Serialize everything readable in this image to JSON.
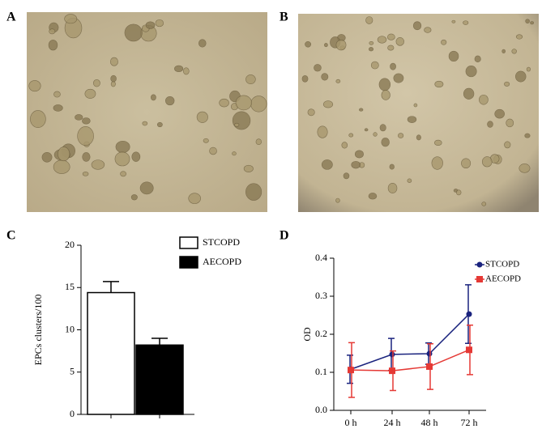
{
  "panel_labels": [
    "A",
    "B",
    "C",
    "D"
  ],
  "chart_data": [
    {
      "type": "bar",
      "ylabel": "EPCs clusters/100",
      "categories": [
        null,
        null
      ],
      "series": [
        {
          "name": "STCOPD",
          "color": "#ffffff",
          "values": [
            14.4,
            null
          ],
          "errors": [
            1.3,
            null
          ]
        },
        {
          "name": "AECOPD",
          "color": "#000000",
          "values": [
            null,
            8.2
          ],
          "errors": [
            null,
            0.8
          ]
        }
      ],
      "ylim": [
        0,
        20
      ],
      "yticks": [
        0,
        5,
        10,
        15,
        20
      ],
      "legend": "top-right"
    },
    {
      "type": "line",
      "ylabel": "OD",
      "categories": [
        "0 h",
        "24 h",
        "48 h",
        "72 h"
      ],
      "series": [
        {
          "name": "STCOPD",
          "color": "#1a237e",
          "values": [
            0.108,
            0.147,
            0.149,
            0.253
          ],
          "errors": [
            0.037,
            0.042,
            0.028,
            0.077
          ]
        },
        {
          "name": "AECOPD",
          "color": "#e53935",
          "values": [
            0.106,
            0.104,
            0.115,
            0.159
          ],
          "errors": [
            0.072,
            0.052,
            0.06,
            0.065
          ]
        }
      ],
      "ylim": [
        0,
        0.4
      ],
      "yticks": [
        {
          "value": 0,
          "label": "0.0"
        },
        0.1,
        0.2,
        0.3,
        0.4
      ],
      "legend": "top-right"
    }
  ]
}
